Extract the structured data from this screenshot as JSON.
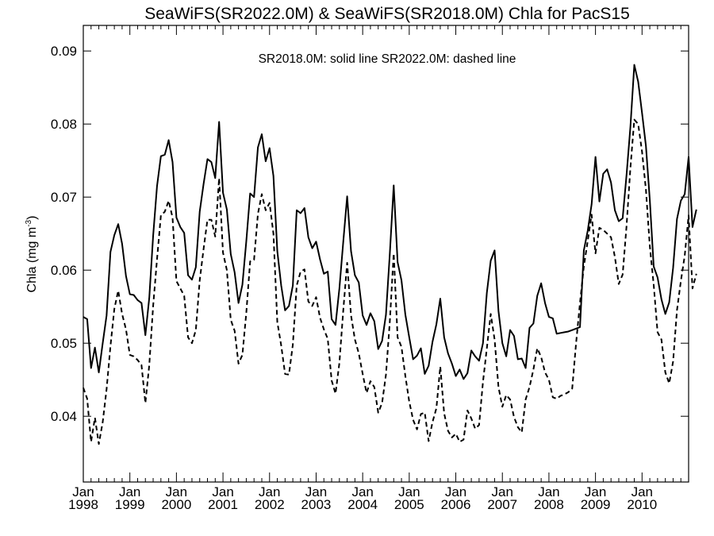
{
  "chart_data": {
    "type": "line",
    "title": "SeaWiFS(SR2022.0M) & SeaWiFS(SR2018.0M)  Chla for PacS15",
    "annotation": "SR2018.0M: solid line   SR2022.0M: dashed line",
    "ylabel": "Chla (mg m",
    "ylabel_sup": "-3",
    "ylabel_close": ")",
    "xlabel": "",
    "ylim": [
      0.031,
      0.0935
    ],
    "xlim": [
      "1998-01",
      "2010-12"
    ],
    "yticks": [
      "0.04",
      "0.05",
      "0.06",
      "0.07",
      "0.08",
      "0.09"
    ],
    "ytick_values": [
      0.04,
      0.05,
      0.06,
      0.07,
      0.08,
      0.09
    ],
    "xtick_month_label": "Jan",
    "xtick_years": [
      "1998",
      "1999",
      "2000",
      "2001",
      "2002",
      "2003",
      "2004",
      "2005",
      "2006",
      "2007",
      "2008",
      "2009",
      "2010"
    ],
    "grid": false,
    "series": [
      {
        "name": "SR2018.0M",
        "style": "solid",
        "color": "#000000",
        "start": "1998-01",
        "values": [
          0.0536,
          0.0533,
          0.0466,
          0.0494,
          0.046,
          0.05,
          0.0538,
          0.0625,
          0.0648,
          0.0663,
          0.0636,
          0.0592,
          0.0567,
          0.0566,
          0.0559,
          0.0555,
          0.0511,
          0.0562,
          0.0647,
          0.0715,
          0.0756,
          0.0758,
          0.0778,
          0.0748,
          0.0672,
          0.0659,
          0.0651,
          0.0593,
          0.0587,
          0.0604,
          0.068,
          0.0718,
          0.0752,
          0.0748,
          0.0726,
          0.0803,
          0.0706,
          0.0683,
          0.0622,
          0.0597,
          0.0555,
          0.058,
          0.0639,
          0.0705,
          0.07,
          0.0768,
          0.0786,
          0.0749,
          0.0767,
          0.0729,
          0.0626,
          0.0579,
          0.0545,
          0.0551,
          0.0579,
          0.0682,
          0.0678,
          0.0685,
          0.0645,
          0.063,
          0.0639,
          0.0615,
          0.0595,
          0.0598,
          0.0533,
          0.0525,
          0.0575,
          0.0639,
          0.0701,
          0.0626,
          0.0593,
          0.0583,
          0.0538,
          0.0525,
          0.0541,
          0.053,
          0.0492,
          0.0503,
          0.0539,
          0.0623,
          0.0716,
          0.0611,
          0.0586,
          0.0539,
          0.0508,
          0.0478,
          0.0483,
          0.0493,
          0.0458,
          0.0469,
          0.0502,
          0.0526,
          0.0561,
          0.0508,
          0.0486,
          0.0472,
          0.0455,
          0.0464,
          0.0451,
          0.0459,
          0.049,
          0.0482,
          0.0476,
          0.05,
          0.0569,
          0.0613,
          0.0627,
          0.0544,
          0.05,
          0.0482,
          0.0518,
          0.051,
          0.0478,
          0.0479,
          0.0466,
          0.0521,
          0.0527,
          0.0565,
          0.0582,
          0.0555,
          0.0536,
          0.0534,
          0.0513,
          0.0514,
          0.0515,
          0.0516,
          0.0518,
          0.052,
          0.0522,
          0.0627,
          0.0654,
          0.069,
          0.0755,
          0.0694,
          0.0732,
          0.0738,
          0.072,
          0.0682,
          0.0667,
          0.0671,
          0.073,
          0.0796,
          0.0881,
          0.0858,
          0.0815,
          0.077,
          0.0696,
          0.0605,
          0.059,
          0.056,
          0.054,
          0.0556,
          0.0603,
          0.067,
          0.0695,
          0.0704,
          0.0755,
          0.0659,
          0.0683
        ]
      },
      {
        "name": "SR2022.0M",
        "style": "dashed",
        "color": "#000000",
        "start": "1998-01",
        "values": [
          0.0439,
          0.0424,
          0.0365,
          0.0398,
          0.0362,
          0.0392,
          0.0437,
          0.0496,
          0.0547,
          0.0572,
          0.054,
          0.0519,
          0.0484,
          0.0482,
          0.0477,
          0.047,
          0.0418,
          0.047,
          0.0551,
          0.0615,
          0.0675,
          0.068,
          0.0695,
          0.0672,
          0.0585,
          0.0575,
          0.0565,
          0.0508,
          0.05,
          0.0518,
          0.0586,
          0.0629,
          0.0669,
          0.0669,
          0.0646,
          0.0726,
          0.0624,
          0.06,
          0.0532,
          0.0517,
          0.0472,
          0.0484,
          0.0541,
          0.0612,
          0.0614,
          0.0677,
          0.0704,
          0.0682,
          0.0692,
          0.065,
          0.0529,
          0.0497,
          0.0458,
          0.0457,
          0.0498,
          0.0579,
          0.0598,
          0.0601,
          0.0557,
          0.0551,
          0.0563,
          0.0535,
          0.0519,
          0.0506,
          0.0449,
          0.0431,
          0.0473,
          0.0545,
          0.061,
          0.0538,
          0.0505,
          0.0486,
          0.0458,
          0.0432,
          0.0448,
          0.044,
          0.0405,
          0.0418,
          0.0457,
          0.053,
          0.0623,
          0.0508,
          0.0495,
          0.0455,
          0.042,
          0.0395,
          0.0382,
          0.0403,
          0.0405,
          0.0366,
          0.0392,
          0.0411,
          0.0468,
          0.0404,
          0.038,
          0.0371,
          0.0376,
          0.0365,
          0.0368,
          0.0408,
          0.0397,
          0.0383,
          0.0388,
          0.0447,
          0.0493,
          0.054,
          0.0505,
          0.044,
          0.0413,
          0.0429,
          0.0423,
          0.0399,
          0.0385,
          0.0378,
          0.0423,
          0.044,
          0.0464,
          0.0493,
          0.0481,
          0.046,
          0.045,
          0.0426,
          0.0424,
          0.0428,
          0.043,
          0.0433,
          0.0438,
          0.05,
          0.0555,
          0.0605,
          0.064,
          0.0676,
          0.0623,
          0.0658,
          0.0655,
          0.065,
          0.0645,
          0.0618,
          0.0581,
          0.0594,
          0.066,
          0.074,
          0.0806,
          0.08,
          0.0762,
          0.071,
          0.0633,
          0.058,
          0.0515,
          0.0505,
          0.046,
          0.0445,
          0.0475,
          0.0545,
          0.0585,
          0.062,
          0.0675,
          0.0575,
          0.0595
        ]
      }
    ]
  }
}
